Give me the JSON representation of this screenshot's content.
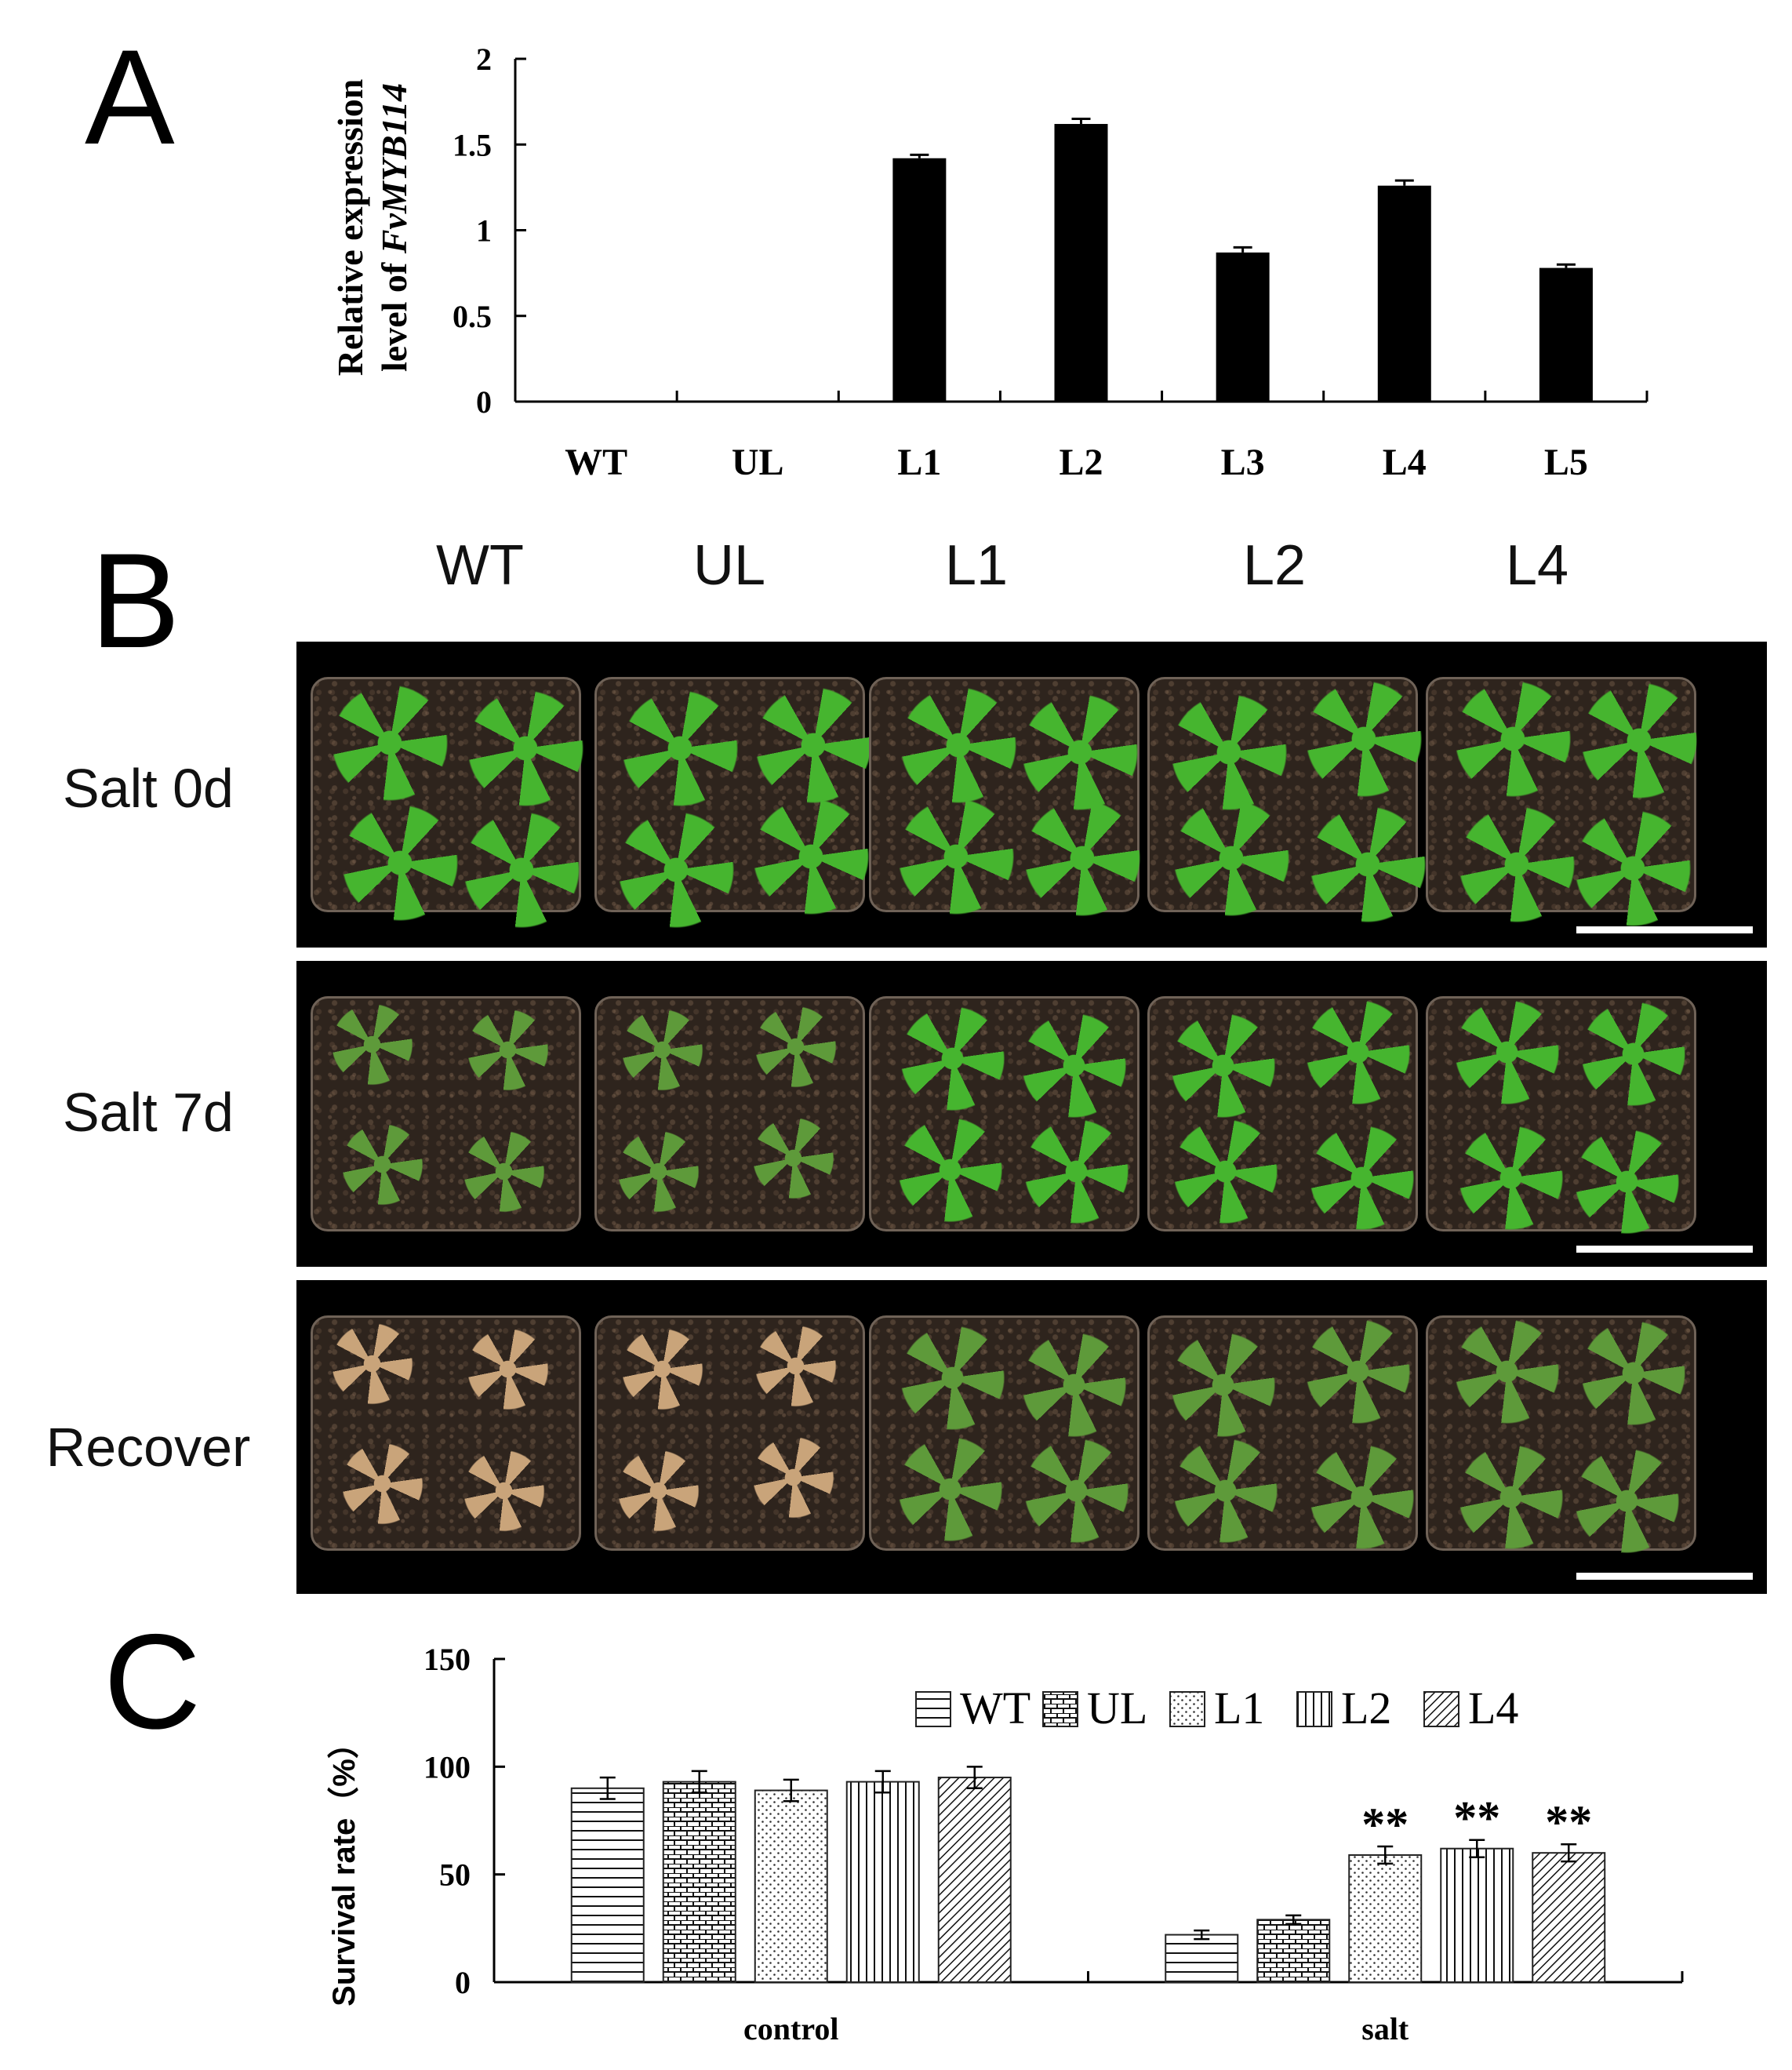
{
  "panel_letters": {
    "a": "A",
    "b": "B",
    "c": "C"
  },
  "chart_data": [
    {
      "type": "bar",
      "panel": "A",
      "ylabel_line1": "Relative expression",
      "ylabel_line2_prefix": "level of ",
      "ylabel_line2_gene": "FvMYB114",
      "categories": [
        "WT",
        "UL",
        "L1",
        "L2",
        "L3",
        "L4",
        "L5"
      ],
      "values": [
        0,
        0,
        1.42,
        1.62,
        0.87,
        1.26,
        0.78
      ],
      "errors": [
        0,
        0,
        0.02,
        0.03,
        0.03,
        0.03,
        0.02
      ],
      "ylim": [
        0,
        2
      ],
      "yticks": [
        "0",
        "0.5",
        "1",
        "1.5",
        "2"
      ],
      "bar_color": "#000000",
      "grid": false
    },
    {
      "type": "bar",
      "panel": "C",
      "ylabel": "Survival rate（%）",
      "categories": [
        "control",
        "salt"
      ],
      "series": [
        {
          "name": "WT",
          "values": [
            90,
            22
          ],
          "errors": [
            5,
            2
          ],
          "pattern": "horizontal-lines"
        },
        {
          "name": "UL",
          "values": [
            93,
            29
          ],
          "errors": [
            5,
            2
          ],
          "pattern": "brick"
        },
        {
          "name": "L1",
          "values": [
            89,
            59
          ],
          "errors": [
            5,
            4
          ],
          "pattern": "dots"
        },
        {
          "name": "L2",
          "values": [
            93,
            62
          ],
          "errors": [
            5,
            4
          ],
          "pattern": "vertical-lines"
        },
        {
          "name": "L4",
          "values": [
            95,
            60
          ],
          "errors": [
            5,
            4
          ],
          "pattern": "diagonal-lines"
        }
      ],
      "significance": [
        {
          "category": "salt",
          "series": "L1",
          "label": "**"
        },
        {
          "category": "salt",
          "series": "L2",
          "label": "**"
        },
        {
          "category": "salt",
          "series": "L4",
          "label": "**"
        }
      ],
      "ylim": [
        0,
        150
      ],
      "yticks": [
        "0",
        "50",
        "100",
        "150"
      ],
      "legend_position": "top-right",
      "grid": false
    }
  ],
  "photos": {
    "columns": [
      "WT",
      "UL",
      "L1",
      "L2",
      "L4"
    ],
    "rows": [
      "Salt 0d",
      "Salt 7d",
      "Recover"
    ],
    "colors": {
      "healthy_leaf": "#46b52f",
      "stressed_leaf": "#5e9a3a",
      "dead_leaf": "#c9a47a",
      "soil": "#2e241d",
      "background": "#000000"
    }
  }
}
